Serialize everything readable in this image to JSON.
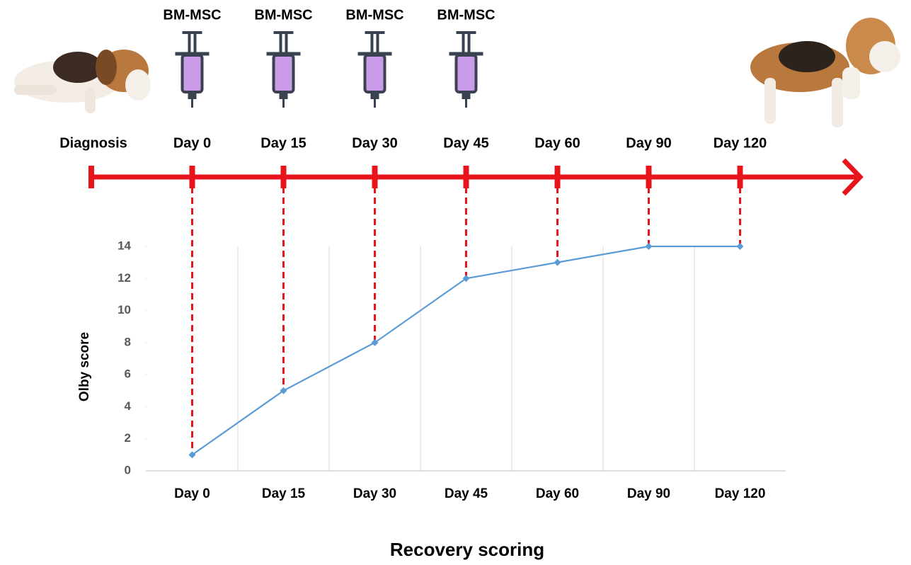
{
  "timeline": {
    "labels": [
      "Diagnosis",
      "Day 0",
      "Day 15",
      "Day 30",
      "Day 45",
      "Day 60",
      "Day 90",
      "Day 120"
    ],
    "injections": [
      "BM-MSC",
      "BM-MSC",
      "BM-MSC",
      "BM-MSC"
    ]
  },
  "chart_data": {
    "type": "line",
    "categories": [
      "Day 0",
      "Day 15",
      "Day 30",
      "Day 45",
      "Day 60",
      "Day 90",
      "Day 120"
    ],
    "series": [
      {
        "name": "Olby score",
        "color": "#5b9bd5",
        "values": [
          1,
          5,
          8,
          12,
          13,
          14,
          14
        ]
      }
    ],
    "ylabel": "Olby score",
    "xlabel": "Recovery scoring",
    "ylim": [
      0,
      14
    ],
    "yticks": [
      0,
      2,
      4,
      6,
      8,
      10,
      12,
      14
    ],
    "grid": true
  }
}
